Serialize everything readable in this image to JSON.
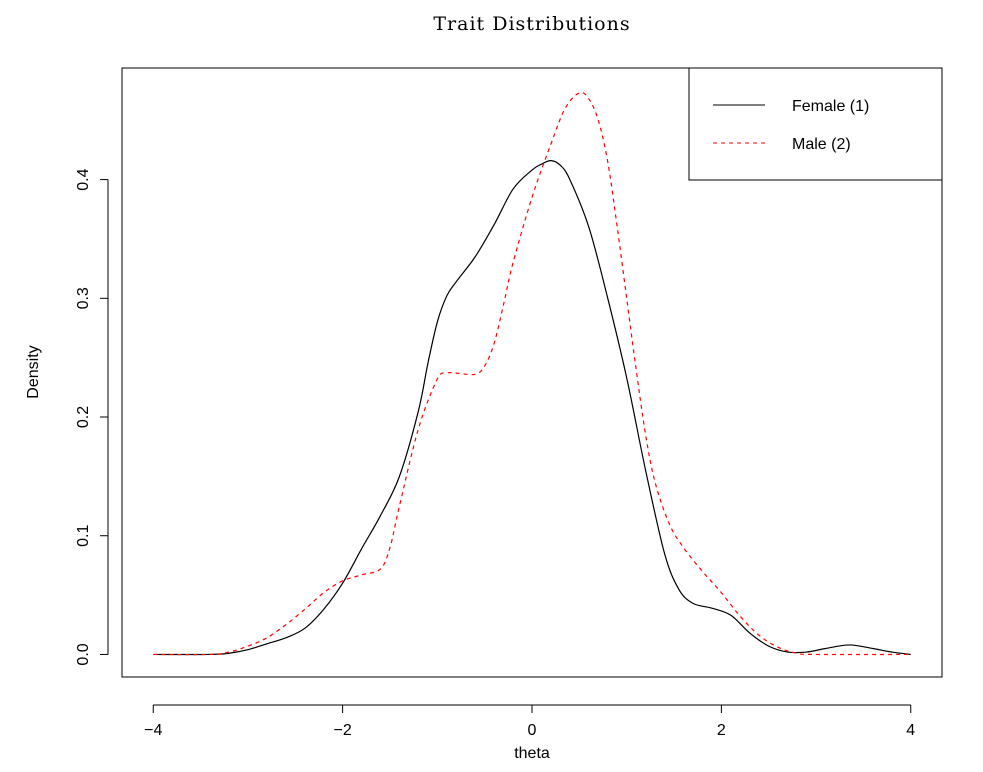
{
  "chart_data": {
    "type": "line",
    "title": "Trait Distributions",
    "xlabel": "theta",
    "ylabel": "Density",
    "xlim": [
      -4.33,
      4.33
    ],
    "ylim": [
      -0.019,
      0.494
    ],
    "x_ticks": [
      -4,
      -2,
      0,
      2,
      4
    ],
    "x_tick_labels": [
      "−4",
      "−2",
      "0",
      "2",
      "4"
    ],
    "y_ticks": [
      0.0,
      0.1,
      0.2,
      0.3,
      0.4
    ],
    "y_tick_labels": [
      "0.0",
      "0.1",
      "0.2",
      "0.3",
      "0.4"
    ],
    "grid": false,
    "legend_position": "top-right",
    "series": [
      {
        "name": "Female (1)",
        "color": "#000000",
        "line_style": "solid",
        "points": [
          [
            -4.0,
            0.0
          ],
          [
            -3.4,
            0.0
          ],
          [
            -3.2,
            0.001
          ],
          [
            -3.0,
            0.004
          ],
          [
            -2.8,
            0.009
          ],
          [
            -2.6,
            0.014
          ],
          [
            -2.4,
            0.022
          ],
          [
            -2.2,
            0.038
          ],
          [
            -2.0,
            0.06
          ],
          [
            -1.8,
            0.089
          ],
          [
            -1.6,
            0.117
          ],
          [
            -1.4,
            0.15
          ],
          [
            -1.2,
            0.205
          ],
          [
            -1.1,
            0.245
          ],
          [
            -1.0,
            0.28
          ],
          [
            -0.9,
            0.302
          ],
          [
            -0.8,
            0.314
          ],
          [
            -0.6,
            0.335
          ],
          [
            -0.4,
            0.362
          ],
          [
            -0.2,
            0.392
          ],
          [
            0.0,
            0.408
          ],
          [
            0.1,
            0.413
          ],
          [
            0.2,
            0.416
          ],
          [
            0.3,
            0.412
          ],
          [
            0.4,
            0.4
          ],
          [
            0.6,
            0.36
          ],
          [
            0.8,
            0.3
          ],
          [
            1.0,
            0.233
          ],
          [
            1.2,
            0.155
          ],
          [
            1.4,
            0.085
          ],
          [
            1.55,
            0.055
          ],
          [
            1.7,
            0.043
          ],
          [
            1.9,
            0.039
          ],
          [
            2.1,
            0.033
          ],
          [
            2.3,
            0.018
          ],
          [
            2.5,
            0.007
          ],
          [
            2.7,
            0.002
          ],
          [
            2.9,
            0.002
          ],
          [
            3.1,
            0.005
          ],
          [
            3.35,
            0.008
          ],
          [
            3.6,
            0.005
          ],
          [
            3.8,
            0.002
          ],
          [
            4.0,
            0.0
          ]
        ]
      },
      {
        "name": "Male (2)",
        "color": "#ff0000",
        "line_style": "dashed",
        "points": [
          [
            -4.0,
            0.0
          ],
          [
            -3.4,
            0.0
          ],
          [
            -3.2,
            0.002
          ],
          [
            -3.0,
            0.007
          ],
          [
            -2.8,
            0.014
          ],
          [
            -2.6,
            0.025
          ],
          [
            -2.4,
            0.038
          ],
          [
            -2.2,
            0.052
          ],
          [
            -2.0,
            0.062
          ],
          [
            -1.8,
            0.067
          ],
          [
            -1.6,
            0.072
          ],
          [
            -1.5,
            0.09
          ],
          [
            -1.4,
            0.125
          ],
          [
            -1.2,
            0.19
          ],
          [
            -1.0,
            0.232
          ],
          [
            -0.9,
            0.237
          ],
          [
            -0.8,
            0.237
          ],
          [
            -0.6,
            0.236
          ],
          [
            -0.5,
            0.243
          ],
          [
            -0.4,
            0.262
          ],
          [
            -0.3,
            0.295
          ],
          [
            -0.2,
            0.33
          ],
          [
            0.0,
            0.385
          ],
          [
            0.2,
            0.43
          ],
          [
            0.35,
            0.46
          ],
          [
            0.5,
            0.473
          ],
          [
            0.6,
            0.468
          ],
          [
            0.7,
            0.45
          ],
          [
            0.8,
            0.415
          ],
          [
            0.9,
            0.36
          ],
          [
            1.0,
            0.3
          ],
          [
            1.1,
            0.24
          ],
          [
            1.2,
            0.185
          ],
          [
            1.3,
            0.145
          ],
          [
            1.45,
            0.11
          ],
          [
            1.6,
            0.09
          ],
          [
            1.8,
            0.07
          ],
          [
            2.0,
            0.052
          ],
          [
            2.2,
            0.032
          ],
          [
            2.4,
            0.016
          ],
          [
            2.6,
            0.006
          ],
          [
            2.8,
            0.001
          ],
          [
            3.0,
            0.0
          ],
          [
            4.0,
            0.0
          ]
        ]
      }
    ]
  }
}
